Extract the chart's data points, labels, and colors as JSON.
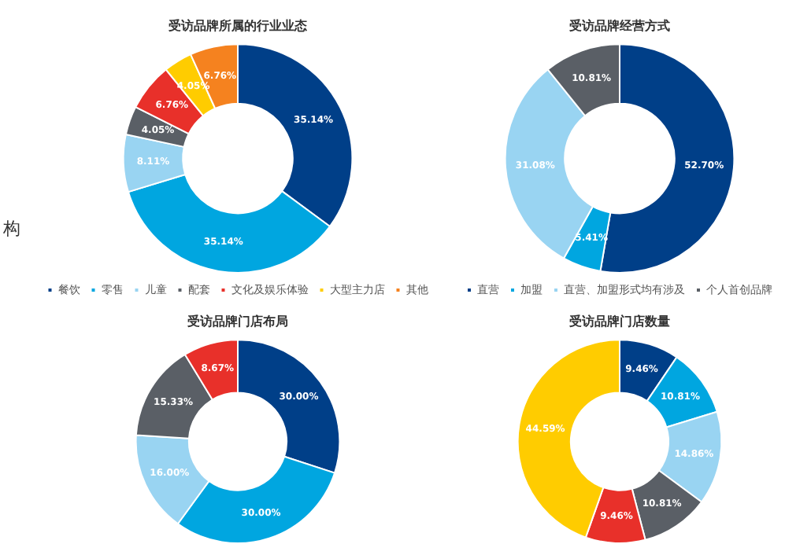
{
  "chart_data": [
    {
      "type": "donut",
      "title": "受访品牌所属的行业业态",
      "categories": [
        "餐饮",
        "零售",
        "儿童",
        "配套",
        "文化及娱乐体验",
        "大型主力店",
        "其他"
      ],
      "values": [
        35.14,
        35.14,
        8.11,
        4.05,
        6.76,
        4.05,
        6.76
      ],
      "value_labels": [
        "35.14%",
        "35.14%",
        "8.11%",
        "4.05%",
        "6.76%",
        "4.05%",
        "6.76%"
      ],
      "colors": [
        "#003f88",
        "#00a6e0",
        "#99d4f2",
        "#5a5f66",
        "#e8302a",
        "#ffcc00",
        "#f5821f"
      ],
      "legend": "bottom",
      "annotations": [
        "构"
      ]
    },
    {
      "type": "donut",
      "title": "受访品牌经营方式",
      "categories": [
        "直营",
        "加盟",
        "直营、加盟形式均有涉及",
        "个人首创品牌"
      ],
      "values": [
        52.7,
        5.41,
        31.08,
        10.81
      ],
      "value_labels": [
        "52.70%",
        "5.41%",
        "31.08%",
        "10.81%"
      ],
      "colors": [
        "#003f88",
        "#00a6e0",
        "#99d4f2",
        "#5a5f66"
      ],
      "legend": "bottom"
    },
    {
      "type": "donut",
      "title": "受访品牌门店布局",
      "categories": [
        null,
        null,
        null,
        null,
        null
      ],
      "values": [
        30.0,
        30.0,
        16.0,
        15.33,
        8.67
      ],
      "value_labels": [
        "30.00%",
        "30.00%",
        "16.00%",
        "15.33%",
        "8.67%"
      ],
      "colors": [
        "#003f88",
        "#00a6e0",
        "#99d4f2",
        "#5a5f66",
        "#e8302a"
      ]
    },
    {
      "type": "donut",
      "title": "受访品牌门店数量",
      "categories": [
        null,
        null,
        null,
        null,
        null,
        null
      ],
      "values": [
        9.46,
        10.81,
        14.86,
        10.81,
        9.46,
        44.59
      ],
      "value_labels": [
        "9.46%",
        "10.81%",
        "14.86%",
        "10.81%",
        "9.46%",
        "44.59%"
      ],
      "colors": [
        "#003f88",
        "#00a6e0",
        "#99d4f2",
        "#5a5f66",
        "#e8302a",
        "#ffcc00"
      ]
    }
  ]
}
